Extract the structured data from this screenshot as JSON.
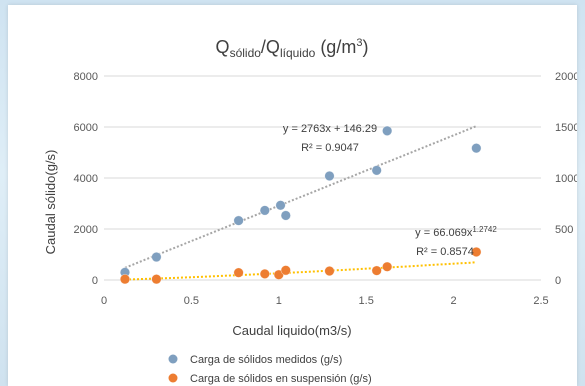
{
  "chart_data": {
    "type": "scatter",
    "title": {
      "q1": "Q",
      "sub1": "sólido",
      "slash": "/Q",
      "sub2": "líquido",
      "unit_pre": " (g/m",
      "unit_sup": "3",
      "unit_post": ")"
    },
    "xlabel": "Caudal liquido(m3/s)",
    "ylabel": "Caudal sólido(g/s)",
    "xlim": [
      0,
      2.5
    ],
    "ylim_left": [
      0,
      8000
    ],
    "ylim_right": [
      0,
      2000
    ],
    "x_ticks": [
      "0",
      "0.5",
      "1",
      "1.5",
      "2",
      "2.5"
    ],
    "y_ticks_left": [
      "0",
      "2000",
      "4000",
      "6000",
      "8000"
    ],
    "y_ticks_right": [
      "0",
      "500",
      "1000",
      "1500",
      "2000"
    ],
    "grid": "horizontal",
    "legend_position": "bottom",
    "series": [
      {
        "name": "Carga de sólidos medidos (g/s)",
        "color": "#7f9fbf",
        "axis": "left",
        "x": [
          0.12,
          0.3,
          0.77,
          0.92,
          1.01,
          1.04,
          1.29,
          1.56,
          1.62,
          2.13
        ],
        "y": [
          300,
          900,
          2330,
          2730,
          2930,
          2530,
          4080,
          4300,
          5850,
          5170
        ],
        "trendline": {
          "type": "linear",
          "slope": 2763,
          "intercept": 146.29,
          "x_range": [
            0.12,
            2.13
          ],
          "color": "#a6a6a6",
          "equation": "y = 2763x + 146.29",
          "r2": "R² = 0.9047"
        }
      },
      {
        "name": "Carga de sólidos en suspensión (g/s)",
        "color": "#ed7d31",
        "axis": "right",
        "x": [
          0.12,
          0.3,
          0.77,
          0.92,
          1.0,
          1.04,
          1.29,
          1.56,
          1.62,
          2.13
        ],
        "y": [
          8,
          8,
          72,
          60,
          52,
          95,
          88,
          92,
          130,
          275
        ],
        "trendline": {
          "type": "power",
          "a": 66.069,
          "b": 1.2742,
          "x_range": [
            0.12,
            2.13
          ],
          "color": "#ffc000",
          "equation_base": "y = 66.069x",
          "equation_exp": "1.2742",
          "r2": "R² = 0.8574"
        }
      }
    ]
  }
}
